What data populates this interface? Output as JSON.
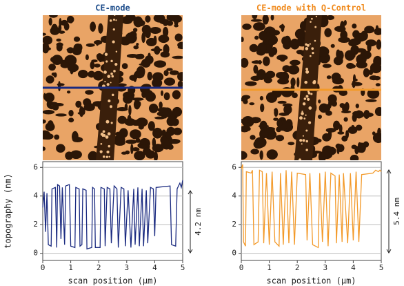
{
  "chart_data": [
    {
      "type": "line",
      "title": "CE-mode",
      "title_color": "#1f4e8c",
      "xlabel": "scan position (µm)",
      "ylabel": "topography (nm)",
      "annotation": "4.2 nm",
      "x": [
        0,
        0.05,
        0.1,
        0.15,
        0.2,
        0.3,
        0.33,
        0.45,
        0.5,
        0.53,
        0.6,
        0.65,
        0.7,
        0.78,
        0.82,
        0.95,
        1.0,
        1.15,
        1.18,
        1.3,
        1.33,
        1.4,
        1.43,
        1.55,
        1.58,
        1.75,
        1.78,
        1.85,
        1.88,
        2.05,
        2.08,
        2.2,
        2.23,
        2.3,
        2.4,
        2.45,
        2.55,
        2.65,
        2.7,
        2.8,
        2.9,
        2.95,
        3.05,
        3.15,
        3.25,
        3.3,
        3.4,
        3.45,
        3.55,
        3.6,
        3.7,
        3.75,
        3.85,
        3.95,
        4.0,
        4.05,
        4.55,
        4.6,
        4.75,
        4.8,
        4.9,
        4.95,
        5.0
      ],
      "series": [
        {
          "color": "#1a2a80",
          "values": [
            3.2,
            4.3,
            1.5,
            4.2,
            0.6,
            0.5,
            4.5,
            4.6,
            0.4,
            4.8,
            4.7,
            1.0,
            4.6,
            0.6,
            4.7,
            4.8,
            0.5,
            0.4,
            4.6,
            4.5,
            0.5,
            0.6,
            4.5,
            4.4,
            0.3,
            0.4,
            4.6,
            4.5,
            0.4,
            0.4,
            4.6,
            4.5,
            0.5,
            4.6,
            4.5,
            0.7,
            4.7,
            4.5,
            0.4,
            4.6,
            4.5,
            0.5,
            4.4,
            0.4,
            4.5,
            0.6,
            4.6,
            0.5,
            4.5,
            0.5,
            4.4,
            0.7,
            4.6,
            4.5,
            1.2,
            4.6,
            4.7,
            0.6,
            0.5,
            4.5,
            4.9,
            4.6,
            5.1
          ]
        }
      ],
      "xlim": [
        0,
        5
      ],
      "xticks": [
        0,
        1,
        2,
        3,
        4,
        5
      ],
      "ylim": [
        -0.5,
        6.4
      ],
      "yticks": [
        0,
        2,
        4,
        6
      ],
      "grid": true
    },
    {
      "type": "line",
      "title": "CE-mode with Q-Control",
      "title_color": "#f08a1c",
      "xlabel": "scan position (µm)",
      "annotation": "5.4 nm",
      "x": [
        0,
        0.05,
        0.08,
        0.15,
        0.18,
        0.35,
        0.4,
        0.45,
        0.6,
        0.65,
        0.75,
        0.8,
        0.9,
        1.0,
        1.1,
        1.2,
        1.35,
        1.4,
        1.5,
        1.6,
        1.7,
        1.8,
        1.9,
        2.0,
        2.3,
        2.35,
        2.45,
        2.55,
        2.75,
        2.8,
        2.9,
        3.0,
        3.1,
        3.2,
        3.35,
        3.4,
        3.5,
        3.6,
        3.65,
        3.8,
        3.9,
        4.0,
        4.1,
        4.2,
        4.3,
        4.7,
        4.8,
        4.9,
        4.95,
        5.0
      ],
      "series": [
        {
          "color": "#f39a2a",
          "values": [
            5.9,
            6.2,
            0.8,
            0.5,
            5.7,
            5.6,
            5.8,
            0.6,
            0.8,
            5.8,
            5.7,
            0.7,
            5.6,
            0.6,
            5.7,
            0.8,
            0.5,
            5.6,
            0.6,
            5.8,
            0.7,
            5.7,
            0.6,
            5.6,
            5.5,
            0.9,
            5.6,
            0.6,
            0.4,
            5.6,
            0.8,
            5.7,
            0.5,
            5.6,
            5.4,
            0.7,
            5.5,
            0.8,
            5.6,
            0.7,
            5.6,
            0.9,
            5.7,
            0.8,
            5.5,
            5.6,
            5.8,
            5.7,
            5.8,
            5.7
          ]
        }
      ],
      "xlim": [
        0,
        5
      ],
      "xticks": [
        0,
        1,
        2,
        3,
        4,
        5
      ],
      "ylim": [
        -0.5,
        6.4
      ],
      "yticks": [
        0,
        2,
        4,
        6
      ],
      "grid": true
    }
  ]
}
